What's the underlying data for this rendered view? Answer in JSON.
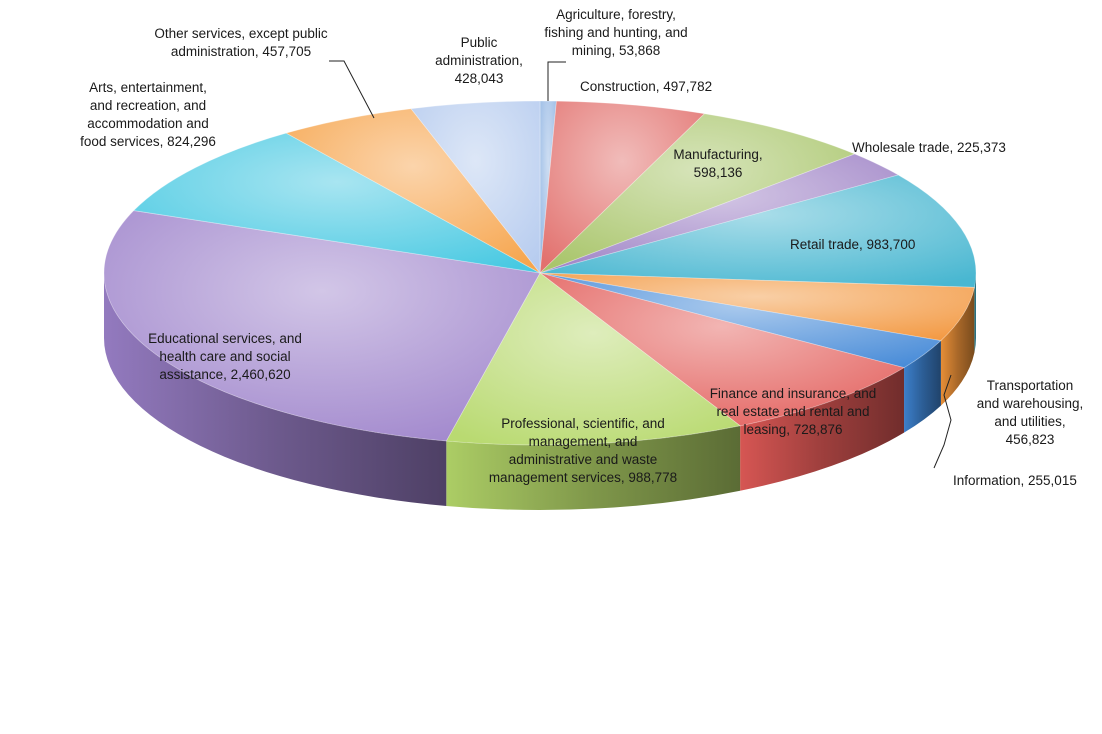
{
  "chart_data": {
    "type": "pie",
    "style": "3d",
    "colors_note": "each slice uses a distinct pastel top with darker side",
    "slices": [
      {
        "label_lines": [
          "Agriculture, forestry,",
          "fishing and hunting, and",
          "mining, 53,868"
        ],
        "value": 53868,
        "color": "#8fb4e3"
      },
      {
        "label_lines": [
          "Construction, 497,782"
        ],
        "value": 497782,
        "color": "#e06a66"
      },
      {
        "label_lines": [
          "Manufacturing,",
          "598,136"
        ],
        "value": 598136,
        "color": "#a4c263"
      },
      {
        "label_lines": [
          "Wholesale trade, 225,373"
        ],
        "value": 225373,
        "color": "#9b7fc4"
      },
      {
        "label_lines": [
          "Retail trade, 983,700"
        ],
        "value": 983700,
        "color": "#3fb3cf"
      },
      {
        "label_lines": [
          "Transportation",
          "and warehousing,",
          "and utilities,",
          "456,823"
        ],
        "value": 456823,
        "color": "#f2953a"
      },
      {
        "label_lines": [
          "Information, 255,015"
        ],
        "value": 255015,
        "color": "#3f86d6"
      },
      {
        "label_lines": [
          "Finance and insurance, and",
          "real estate and rental and",
          "leasing, 728,876"
        ],
        "value": 728876,
        "color": "#e15a57"
      },
      {
        "label_lines": [
          "Professional, scientific, and",
          "management, and",
          "administrative and waste",
          "management services, 988,778"
        ],
        "value": 988778,
        "color": "#b5d86a"
      },
      {
        "label_lines": [
          "Educational services, and",
          "health care and social",
          "assistance, 2,460,620"
        ],
        "value": 2460620,
        "color": "#9b80c9"
      },
      {
        "label_lines": [
          "Arts, entertainment,",
          "and recreation, and",
          "accommodation and",
          "food services, 824,296"
        ],
        "value": 824296,
        "color": "#3ec6e0"
      },
      {
        "label_lines": [
          "Other services, except public",
          "administration, 457,705"
        ],
        "value": 457705,
        "color": "#f5a044"
      },
      {
        "label_lines": [
          "Public",
          "administration,",
          "428,043"
        ],
        "value": 428043,
        "color": "#b3c9ee"
      }
    ]
  }
}
